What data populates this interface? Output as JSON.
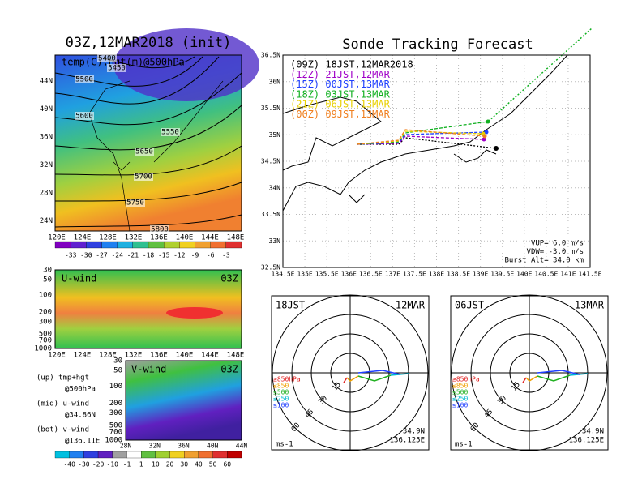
{
  "left_top": {
    "title": "03Z,12MAR2018 (init)",
    "subtitle": "temp(C),hgt(m)@500hPa",
    "lat_labels": [
      "44N",
      "40N",
      "36N",
      "32N",
      "28N",
      "24N"
    ],
    "lon_labels": [
      "120E",
      "124E",
      "128E",
      "132E",
      "136E",
      "140E",
      "144E",
      "148E"
    ],
    "contour_labels": [
      "5400",
      "5450",
      "5500",
      "5550",
      "5600",
      "5650",
      "5700",
      "5750",
      "5800"
    ],
    "colorbar_labels": [
      "-33",
      "-30",
      "-27",
      "-24",
      "-21",
      "-18",
      "-15",
      "-12",
      "-9",
      "-6",
      "-3"
    ]
  },
  "left_mid": {
    "title": "U-wind",
    "time": "03Z",
    "level_labels": [
      "30",
      "50",
      "100",
      "200",
      "300",
      "500",
      "700",
      "1000"
    ],
    "lon_labels": [
      "120E",
      "124E",
      "128E",
      "132E",
      "136E",
      "140E",
      "144E",
      "148E"
    ]
  },
  "left_bottom": {
    "title": "V-wind",
    "time": "03Z",
    "level_labels": [
      "30",
      "50",
      "100",
      "200",
      "300",
      "500",
      "700",
      "1000"
    ],
    "lat_labels": [
      "28N",
      "32N",
      "36N",
      "40N",
      "44N"
    ],
    "colorbar_labels": [
      "-40",
      "-30",
      "-20",
      "-10",
      "-1",
      "1",
      "10",
      "20",
      "30",
      "40",
      "50",
      "60"
    ]
  },
  "notes": [
    "(up) tmp+hgt",
    "@500hPa",
    "(mid) u-wind",
    "@34.86N",
    "(bot) v-wind",
    "@136.11E"
  ],
  "track": {
    "title": "Sonde Tracking Forecast",
    "legend": [
      {
        "label": "(09Z) 18JST,12MAR2018",
        "color": "#000000"
      },
      {
        "label": "(12Z) 21JST,12MAR",
        "color": "#a000c8"
      },
      {
        "label": "(15Z) 00JST,13MAR",
        "color": "#2040ff"
      },
      {
        "label": "(18Z) 03JST,13MAR",
        "color": "#10b020"
      },
      {
        "label": "(21Z) 06JST,13MAR",
        "color": "#e8d000"
      },
      {
        "label": "(00Z) 09JST,13MAR",
        "color": "#f08020"
      }
    ],
    "lat_labels": [
      "36.5N",
      "36N",
      "35.5N",
      "35N",
      "34.5N",
      "34N",
      "33.5N",
      "33N",
      "32.5N"
    ],
    "lon_labels": [
      "134.5E",
      "135E",
      "135.5E",
      "136E",
      "136.5E",
      "137E",
      "137.5E",
      "138E",
      "138.5E",
      "139E",
      "139.5E",
      "140E",
      "140.5E",
      "141E",
      "141.5E"
    ],
    "info": [
      "VUP= 6.0 m/s",
      "VDW= -3.0 m/s",
      "Burst Alt= 34.0 km"
    ]
  },
  "hodographs": [
    {
      "time": "18JST",
      "date": "12MAR",
      "lat": "34.9N",
      "lon": "136.125E",
      "unit": "ms-1",
      "ring_labels": [
        "15",
        "30",
        "45",
        "60"
      ],
      "level_legend": [
        {
          "label": "≥850hPa",
          "color": "#e02020"
        },
        {
          "label": "≤850",
          "color": "#f0a000"
        },
        {
          "label": "≤500",
          "color": "#20b020"
        },
        {
          "label": "≤250",
          "color": "#00b8d0"
        },
        {
          "label": "≤100",
          "color": "#2040ff"
        }
      ]
    },
    {
      "time": "06JST",
      "date": "13MAR",
      "lat": "34.9N",
      "lon": "136.125E",
      "unit": "ms-1",
      "ring_labels": [
        "15",
        "30",
        "45",
        "60"
      ],
      "level_legend": [
        {
          "label": "≥850hPa",
          "color": "#e02020"
        },
        {
          "label": "≤850",
          "color": "#f0a000"
        },
        {
          "label": "≤500",
          "color": "#20b020"
        },
        {
          "label": "≤250",
          "color": "#00b8d0"
        },
        {
          "label": "≤100",
          "color": "#2040ff"
        }
      ]
    }
  ]
}
